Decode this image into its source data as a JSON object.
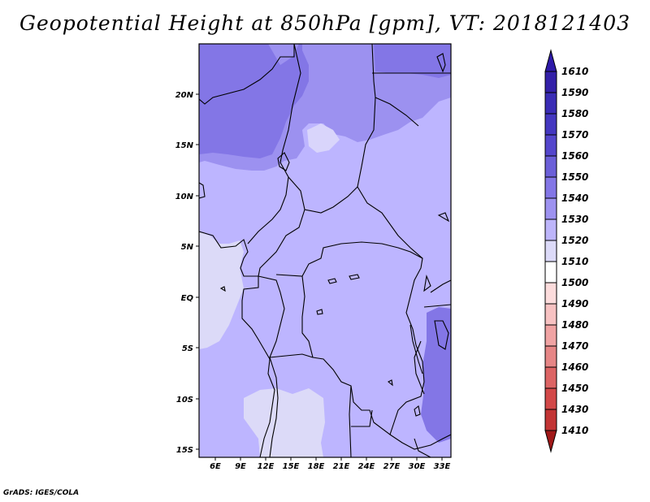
{
  "title": "Geopotential Height at 850hPa [gpm], VT: 2018121403",
  "credit": "GrADS: IGES/COLA",
  "map": {
    "lat_labels": [
      "20N",
      "15N",
      "10N",
      "5N",
      "EQ",
      "5S",
      "10S",
      "15S"
    ],
    "lon_labels": [
      "6E",
      "9E",
      "12E",
      "15E",
      "18E",
      "21E",
      "24E",
      "27E",
      "30E",
      "33E"
    ],
    "dominant_field_color": "#bdb5ff",
    "land_outline_color": "#000000"
  },
  "colorbar": {
    "top_triangle_color": "#2e1aa8",
    "bottom_triangle_color": "#a01818",
    "levels": [
      {
        "label": "1610",
        "color": "#3320a8"
      },
      {
        "label": "1590",
        "color": "#3a2cb5"
      },
      {
        "label": "1580",
        "color": "#4437c0"
      },
      {
        "label": "1570",
        "color": "#5446cc"
      },
      {
        "label": "1560",
        "color": "#6b5fd8"
      },
      {
        "label": "1550",
        "color": "#8376e6"
      },
      {
        "label": "1540",
        "color": "#9d92f0"
      },
      {
        "label": "1530",
        "color": "#bdb5fa"
      },
      {
        "label": "1520",
        "color": "#dcdaf8"
      },
      {
        "label": "1510",
        "color": "#ffffff"
      },
      {
        "label": "1500",
        "color": "#fcdcdc"
      },
      {
        "label": "1490",
        "color": "#f7c2c2"
      },
      {
        "label": "1480",
        "color": "#f0a3a3"
      },
      {
        "label": "1470",
        "color": "#e68686"
      },
      {
        "label": "1460",
        "color": "#dc6464"
      },
      {
        "label": "1450",
        "color": "#d24848"
      },
      {
        "label": "1430",
        "color": "#c23434"
      },
      {
        "label": "1410",
        "color": "#a82222"
      }
    ]
  }
}
